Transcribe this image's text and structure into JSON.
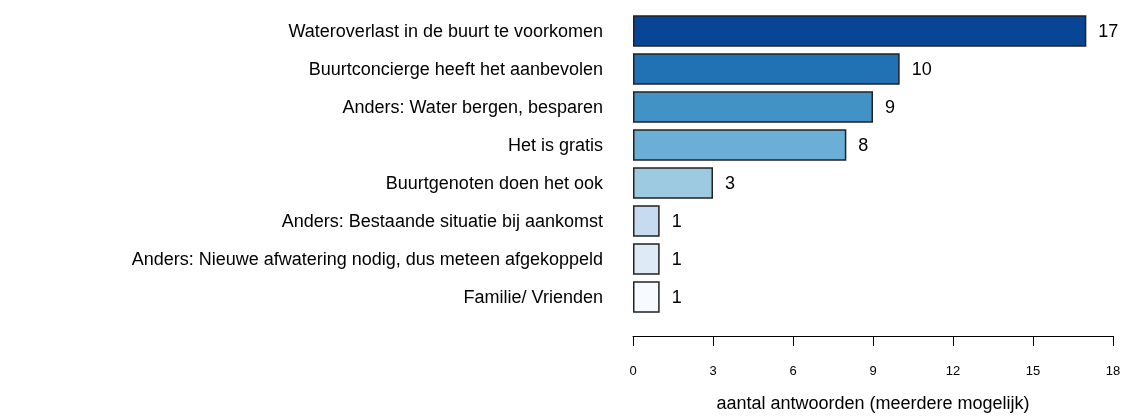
{
  "chart_data": {
    "type": "bar",
    "orientation": "horizontal",
    "xlabel": "aantal antwoorden (meerdere mogelijk)",
    "categories": [
      "Wateroverlast in de buurt te voorkomen",
      "Buurtconcierge heeft het aanbevolen",
      "Anders: Water bergen, besparen",
      "Het is gratis",
      "Buurtgenoten doen het ook",
      "Anders: Bestaande situatie bij aankomst",
      "Anders: Nieuwe afwatering nodig, dus meteen afgekoppeld",
      "Familie/ Vrienden"
    ],
    "values": [
      17,
      10,
      9,
      8,
      3,
      1,
      1,
      1
    ],
    "colors": [
      "#084594",
      "#2171b5",
      "#4292c6",
      "#6baed6",
      "#9ecae1",
      "#c6dbef",
      "#deebf7",
      "#f7fbff"
    ],
    "xlim": [
      0,
      18
    ],
    "xticks": [
      0,
      3,
      6,
      9,
      12,
      15,
      18
    ],
    "data_labels": true
  }
}
